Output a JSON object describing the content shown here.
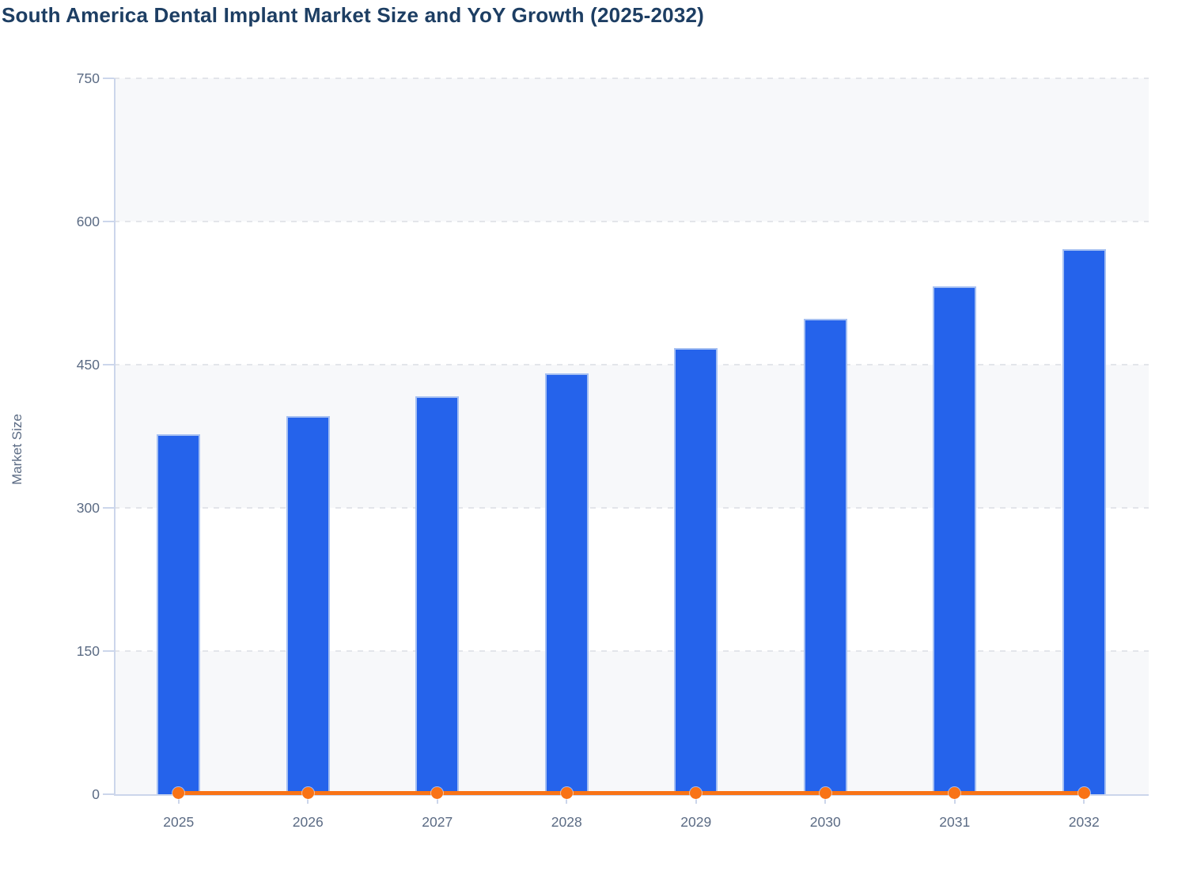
{
  "page": {
    "background": "#ffffff"
  },
  "chart_data": {
    "type": "bar",
    "subtype": "bar-with-line-overlay",
    "title": "South America Dental Implant Market Size and YoY Growth (2025-2032)",
    "xlabel": "",
    "ylabel": "Market Size",
    "categories": [
      "2025",
      "2026",
      "2027",
      "2028",
      "2029",
      "2030",
      "2031",
      "2032"
    ],
    "y_axis": {
      "min": 0,
      "max": 750,
      "tick_step": 150,
      "ticks": [
        "0",
        "150",
        "300",
        "450",
        "600",
        "750"
      ]
    },
    "grid": "horizontal dashed gridlines, alternating shaded bands",
    "legend_position": "none",
    "series": [
      {
        "name": "Market Size",
        "type": "bar",
        "color": "#2563eb",
        "values": [
          377,
          396,
          417,
          441,
          467,
          498,
          532,
          571
        ]
      },
      {
        "name": "YoY Growth",
        "type": "line",
        "color": "#f97316",
        "plotted_flat_near_zero_on_left_axis": true,
        "approx_percent": [
          null,
          5.0,
          5.3,
          5.8,
          5.9,
          6.6,
          6.8,
          7.3
        ]
      }
    ]
  },
  "style": {
    "title_color": "#1d3e63",
    "axis_text_color": "#5b6b84",
    "bar_color": "#2563eb",
    "bar_stroke_color": "#a6c0f2",
    "line_color": "#f97316",
    "shaded_band_color": "#f7f8fa",
    "gridline_color": "#e3e5ea",
    "axis_line_color": "#ccd6eb"
  }
}
